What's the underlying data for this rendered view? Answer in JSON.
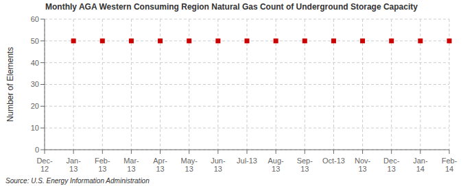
{
  "chart_data": {
    "type": "scatter",
    "title": "Monthly AGA Western Consuming Region Natural Gas Count of Underground Storage Capacity",
    "ylabel": "Number of Elements",
    "annotations": [
      "Source: U.S. Energy Information Administration"
    ],
    "categories": [
      "Dec-\n12",
      "Jan-\n13",
      "Feb-\n13",
      "Mar-\n13",
      "Apr-\n13",
      "May-\n13",
      "Jun-\n13",
      "Jul-13",
      "Aug-\n13",
      "Sep-\n13",
      "Oct-13",
      "Nov-\n13",
      "Dec-\n13",
      "Jan-\n14",
      "Feb-\n14"
    ],
    "values": [
      null,
      50,
      50,
      50,
      50,
      50,
      50,
      50,
      50,
      50,
      50,
      50,
      50,
      50,
      50
    ],
    "color": "#cc0000",
    "marker": "square",
    "ylim": [
      0,
      60
    ],
    "yticks": [
      0,
      10,
      20,
      30,
      40,
      50,
      60
    ],
    "grid": true
  }
}
